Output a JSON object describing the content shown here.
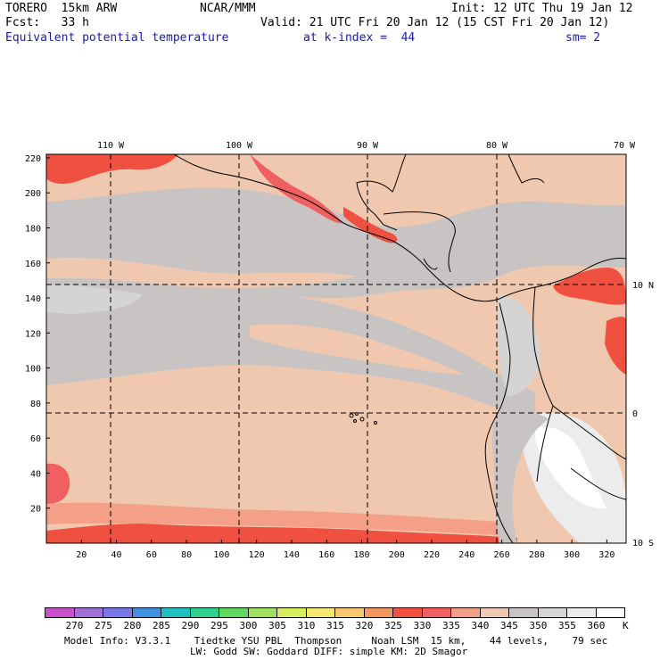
{
  "header": {
    "model": "TORERO  15km ARW",
    "center": "NCAR/MMM",
    "init": "Init: 12 UTC Thu 19 Jan 12",
    "fcst": "Fcst:   33 h",
    "valid": "Valid: 21 UTC Fri 20 Jan 12 (15 CST Fri 20 Jan 12)",
    "field": "Equivalent potential temperature",
    "level": "at k-index =  44",
    "smooth": "sm= 2"
  },
  "map": {
    "lon_labels": [
      "110 W",
      "100 W",
      "90 W",
      "80 W",
      "70 W"
    ],
    "lat_labels": [
      "10 N",
      "0",
      "10 S"
    ],
    "y_ticks": [
      "220",
      "200",
      "180",
      "160",
      "140",
      "120",
      "100",
      "80",
      "60",
      "40",
      "20"
    ],
    "x_ticks": [
      "20",
      "40",
      "60",
      "80",
      "100",
      "120",
      "140",
      "160",
      "180",
      "200",
      "220",
      "240",
      "260",
      "280",
      "300",
      "320"
    ]
  },
  "colorbar": {
    "labels": [
      "270",
      "275",
      "280",
      "285",
      "290",
      "295",
      "300",
      "305",
      "310",
      "315",
      "320",
      "325",
      "330",
      "335",
      "340",
      "345",
      "350",
      "355",
      "360"
    ],
    "unit": "K",
    "colors": [
      "#c850c8",
      "#a070d8",
      "#7878e6",
      "#4090e0",
      "#20c0c0",
      "#30d090",
      "#60d860",
      "#a0e060",
      "#d8ec60",
      "#f4e870",
      "#f8c870",
      "#f49860",
      "#f05040",
      "#f06060",
      "#f4a088",
      "#f0c8b0",
      "#c8c4c4",
      "#d4d4d4",
      "#ececec",
      "#ffffff"
    ]
  },
  "footer": {
    "line1": "Model Info: V3.3.1    Tiedtke YSU PBL  Thompson     Noah LSM  15 km,    44 levels,    79 sec",
    "line2": "LW: Godd SW: Goddard DIFF: simple KM: 2D Smagor"
  }
}
